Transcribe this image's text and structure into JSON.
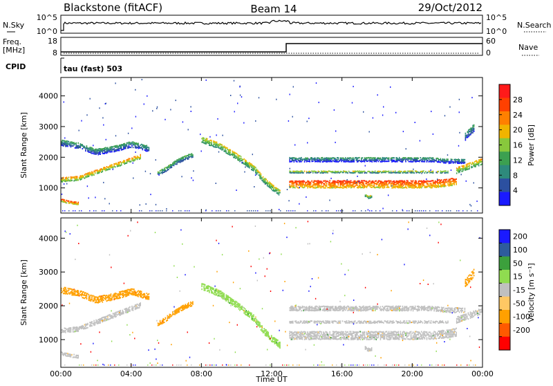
{
  "header": {
    "title": "Blackstone (fitACF)",
    "beam": "Beam 14",
    "date": "29/Oct/2012"
  },
  "noise_panel": {
    "left_label": "N.Sky",
    "left_ticks": [
      "10^5",
      "10^0"
    ],
    "right_label": "N.Search",
    "right_ticks": [
      "10^5",
      "10^0"
    ]
  },
  "freq_panel": {
    "left_label": "Freq.",
    "left_unit": "[MHz]",
    "left_ticks": [
      "18",
      "8"
    ],
    "right_label": "Nave",
    "right_ticks": [
      "60",
      "0"
    ]
  },
  "cpid": {
    "label": "CPID",
    "value": "tau (fast) 503"
  },
  "colors": {
    "power_scale": [
      "#1a1aff",
      "#2c50a0",
      "#2e8a7c",
      "#3ca050",
      "#88c83c",
      "#f0b400",
      "#ff8000",
      "#ff4000",
      "#ff1a1a"
    ],
    "velocity_scale": [
      "#ff0000",
      "#ff5a00",
      "#ffa000",
      "#ffc864",
      "#c0c0c0",
      "#90dc50",
      "#3ca03c",
      "#2e5c9c",
      "#1a1aff"
    ]
  },
  "chart_data": [
    {
      "type": "heatmap",
      "name": "power",
      "ylabel": "Slant Range [km]",
      "xlabel": "",
      "ylim": [
        180,
        4600
      ],
      "yticks": [
        "4000",
        "3000",
        "2000",
        "1000"
      ],
      "ytick_values": [
        4000,
        3000,
        2000,
        1000
      ],
      "xlim": [
        0,
        24
      ],
      "colorbar_label": "Power [dB]",
      "colorbar_ticks": [
        "28",
        "24",
        "20",
        "16",
        "12",
        "8",
        "4"
      ],
      "colorbar_range": [
        0,
        32
      ],
      "bands": [
        {
          "t": [
            0.0,
            0.5,
            1.0,
            1.5,
            2.0,
            2.5,
            3.0,
            3.5,
            4.0,
            4.5
          ],
          "r": [
            1300,
            1320,
            1340,
            1450,
            1550,
            1650,
            1750,
            1850,
            1950,
            2050
          ],
          "w": 150,
          "p": 18
        },
        {
          "t": [
            0.0,
            0.5,
            1.0
          ],
          "r": [
            620,
            560,
            520
          ],
          "w": 100,
          "p": 22
        },
        {
          "t": [
            0.0,
            1.0,
            2.0,
            3.0,
            4.0,
            5.0
          ],
          "r": [
            2500,
            2400,
            2200,
            2300,
            2450,
            2300
          ],
          "w": 200,
          "p": 6
        },
        {
          "t": [
            5.5,
            6.0,
            6.5,
            7.0,
            7.5
          ],
          "r": [
            1500,
            1650,
            1850,
            2000,
            2100
          ],
          "w": 150,
          "p": 8
        },
        {
          "t": [
            8.0,
            9.0,
            10.0,
            11.0,
            11.5,
            12.0,
            12.5
          ],
          "r": [
            2600,
            2400,
            2050,
            1650,
            1300,
            1050,
            850
          ],
          "w": 200,
          "p": 14
        },
        {
          "t": [
            13.0,
            14.0,
            15.0,
            16.0,
            17.0,
            18.0,
            19.0,
            20.0,
            21.0,
            22.0,
            22.5
          ],
          "r": [
            1150,
            1150,
            1150,
            1150,
            1150,
            1150,
            1150,
            1150,
            1150,
            1200,
            1250
          ],
          "w": 250,
          "p": 24
        },
        {
          "t": [
            13.0,
            14.0,
            15.0,
            16.0,
            17.0,
            18.0,
            19.0,
            20.0,
            21.0,
            22.0
          ],
          "r": [
            1550,
            1550,
            1550,
            1550,
            1550,
            1550,
            1550,
            1550,
            1550,
            1550
          ],
          "w": 80,
          "p": 12
        },
        {
          "t": [
            13.0,
            14.0,
            15.0,
            16.0,
            17.0,
            18.0,
            19.0,
            20.0,
            21.0,
            22.0,
            23.0
          ],
          "r": [
            1950,
            1950,
            1950,
            1950,
            1950,
            1950,
            1950,
            1950,
            1950,
            1900,
            1900
          ],
          "w": 150,
          "p": 5
        },
        {
          "t": [
            22.5,
            23.0,
            23.5,
            24.0
          ],
          "r": [
            1600,
            1700,
            1800,
            1900
          ],
          "w": 200,
          "p": 16
        },
        {
          "t": [
            17.3,
            17.5,
            17.7
          ],
          "r": [
            780,
            720,
            760
          ],
          "w": 100,
          "p": 12
        },
        {
          "t": [
            23.0,
            23.5
          ],
          "r": [
            2700,
            3000
          ],
          "w": 250,
          "p": 6
        }
      ]
    },
    {
      "type": "heatmap",
      "name": "velocity",
      "ylabel": "Slant Range [km]",
      "xlabel": "Time UT",
      "ylim": [
        180,
        4600
      ],
      "yticks": [
        "4000",
        "3000",
        "2000",
        "1000"
      ],
      "ytick_values": [
        4000,
        3000,
        2000,
        1000
      ],
      "xlim": [
        0,
        24
      ],
      "xticks": [
        "00:00",
        "04:00",
        "08:00",
        "12:00",
        "16:00",
        "20:00",
        "00:00"
      ],
      "xtick_values": [
        0,
        4,
        8,
        12,
        16,
        20,
        24
      ],
      "colorbar_label": "Velocity [m s⁻¹]",
      "colorbar_ticks": [
        "200",
        "100",
        "50",
        "15",
        "-15",
        "-50",
        "-100",
        "-200"
      ],
      "bands": [
        {
          "t": [
            0.0,
            0.5,
            1.0,
            1.5,
            2.0,
            2.5,
            3.0,
            3.5,
            4.0,
            4.5
          ],
          "r": [
            1300,
            1320,
            1340,
            1450,
            1550,
            1650,
            1750,
            1850,
            1950,
            2050
          ],
          "w": 150,
          "v": 0
        },
        {
          "t": [
            0.0,
            0.5,
            1.0
          ],
          "r": [
            620,
            560,
            520
          ],
          "w": 100,
          "v": 0
        },
        {
          "t": [
            0.0,
            1.0,
            2.0,
            3.0,
            4.0,
            5.0
          ],
          "r": [
            2500,
            2400,
            2200,
            2300,
            2450,
            2300
          ],
          "w": 200,
          "v": -60
        },
        {
          "t": [
            5.5,
            6.0,
            6.5,
            7.0,
            7.5
          ],
          "r": [
            1500,
            1650,
            1850,
            2000,
            2100
          ],
          "w": 150,
          "v": -60
        },
        {
          "t": [
            8.0,
            9.0,
            10.0,
            11.0,
            11.5,
            12.0,
            12.5
          ],
          "r": [
            2600,
            2400,
            2050,
            1650,
            1300,
            1050,
            850
          ],
          "w": 200,
          "v": 25
        },
        {
          "t": [
            13.0,
            14.0,
            15.0,
            16.0,
            17.0,
            18.0,
            19.0,
            20.0,
            21.0,
            22.0,
            22.5
          ],
          "r": [
            1150,
            1150,
            1150,
            1150,
            1150,
            1150,
            1150,
            1150,
            1150,
            1200,
            1250
          ],
          "w": 250,
          "v": 0
        },
        {
          "t": [
            13.0,
            14.0,
            15.0,
            16.0,
            17.0,
            18.0,
            19.0,
            20.0,
            21.0,
            22.0
          ],
          "r": [
            1550,
            1550,
            1550,
            1550,
            1550,
            1550,
            1550,
            1550,
            1550,
            1550
          ],
          "w": 80,
          "v": 0
        },
        {
          "t": [
            13.0,
            14.0,
            15.0,
            16.0,
            17.0,
            18.0,
            19.0,
            20.0,
            21.0,
            22.0,
            23.0
          ],
          "r": [
            1950,
            1950,
            1950,
            1950,
            1950,
            1950,
            1950,
            1950,
            1950,
            1900,
            1900
          ],
          "w": 150,
          "v": 0
        },
        {
          "t": [
            22.5,
            23.0,
            23.5,
            24.0
          ],
          "r": [
            1600,
            1700,
            1800,
            1900
          ],
          "w": 200,
          "v": 0
        },
        {
          "t": [
            17.3,
            17.5,
            17.7
          ],
          "r": [
            780,
            720,
            760
          ],
          "w": 100,
          "v": 0
        },
        {
          "t": [
            23.0,
            23.5
          ],
          "r": [
            2700,
            3000
          ],
          "w": 250,
          "v": -60
        }
      ]
    }
  ]
}
